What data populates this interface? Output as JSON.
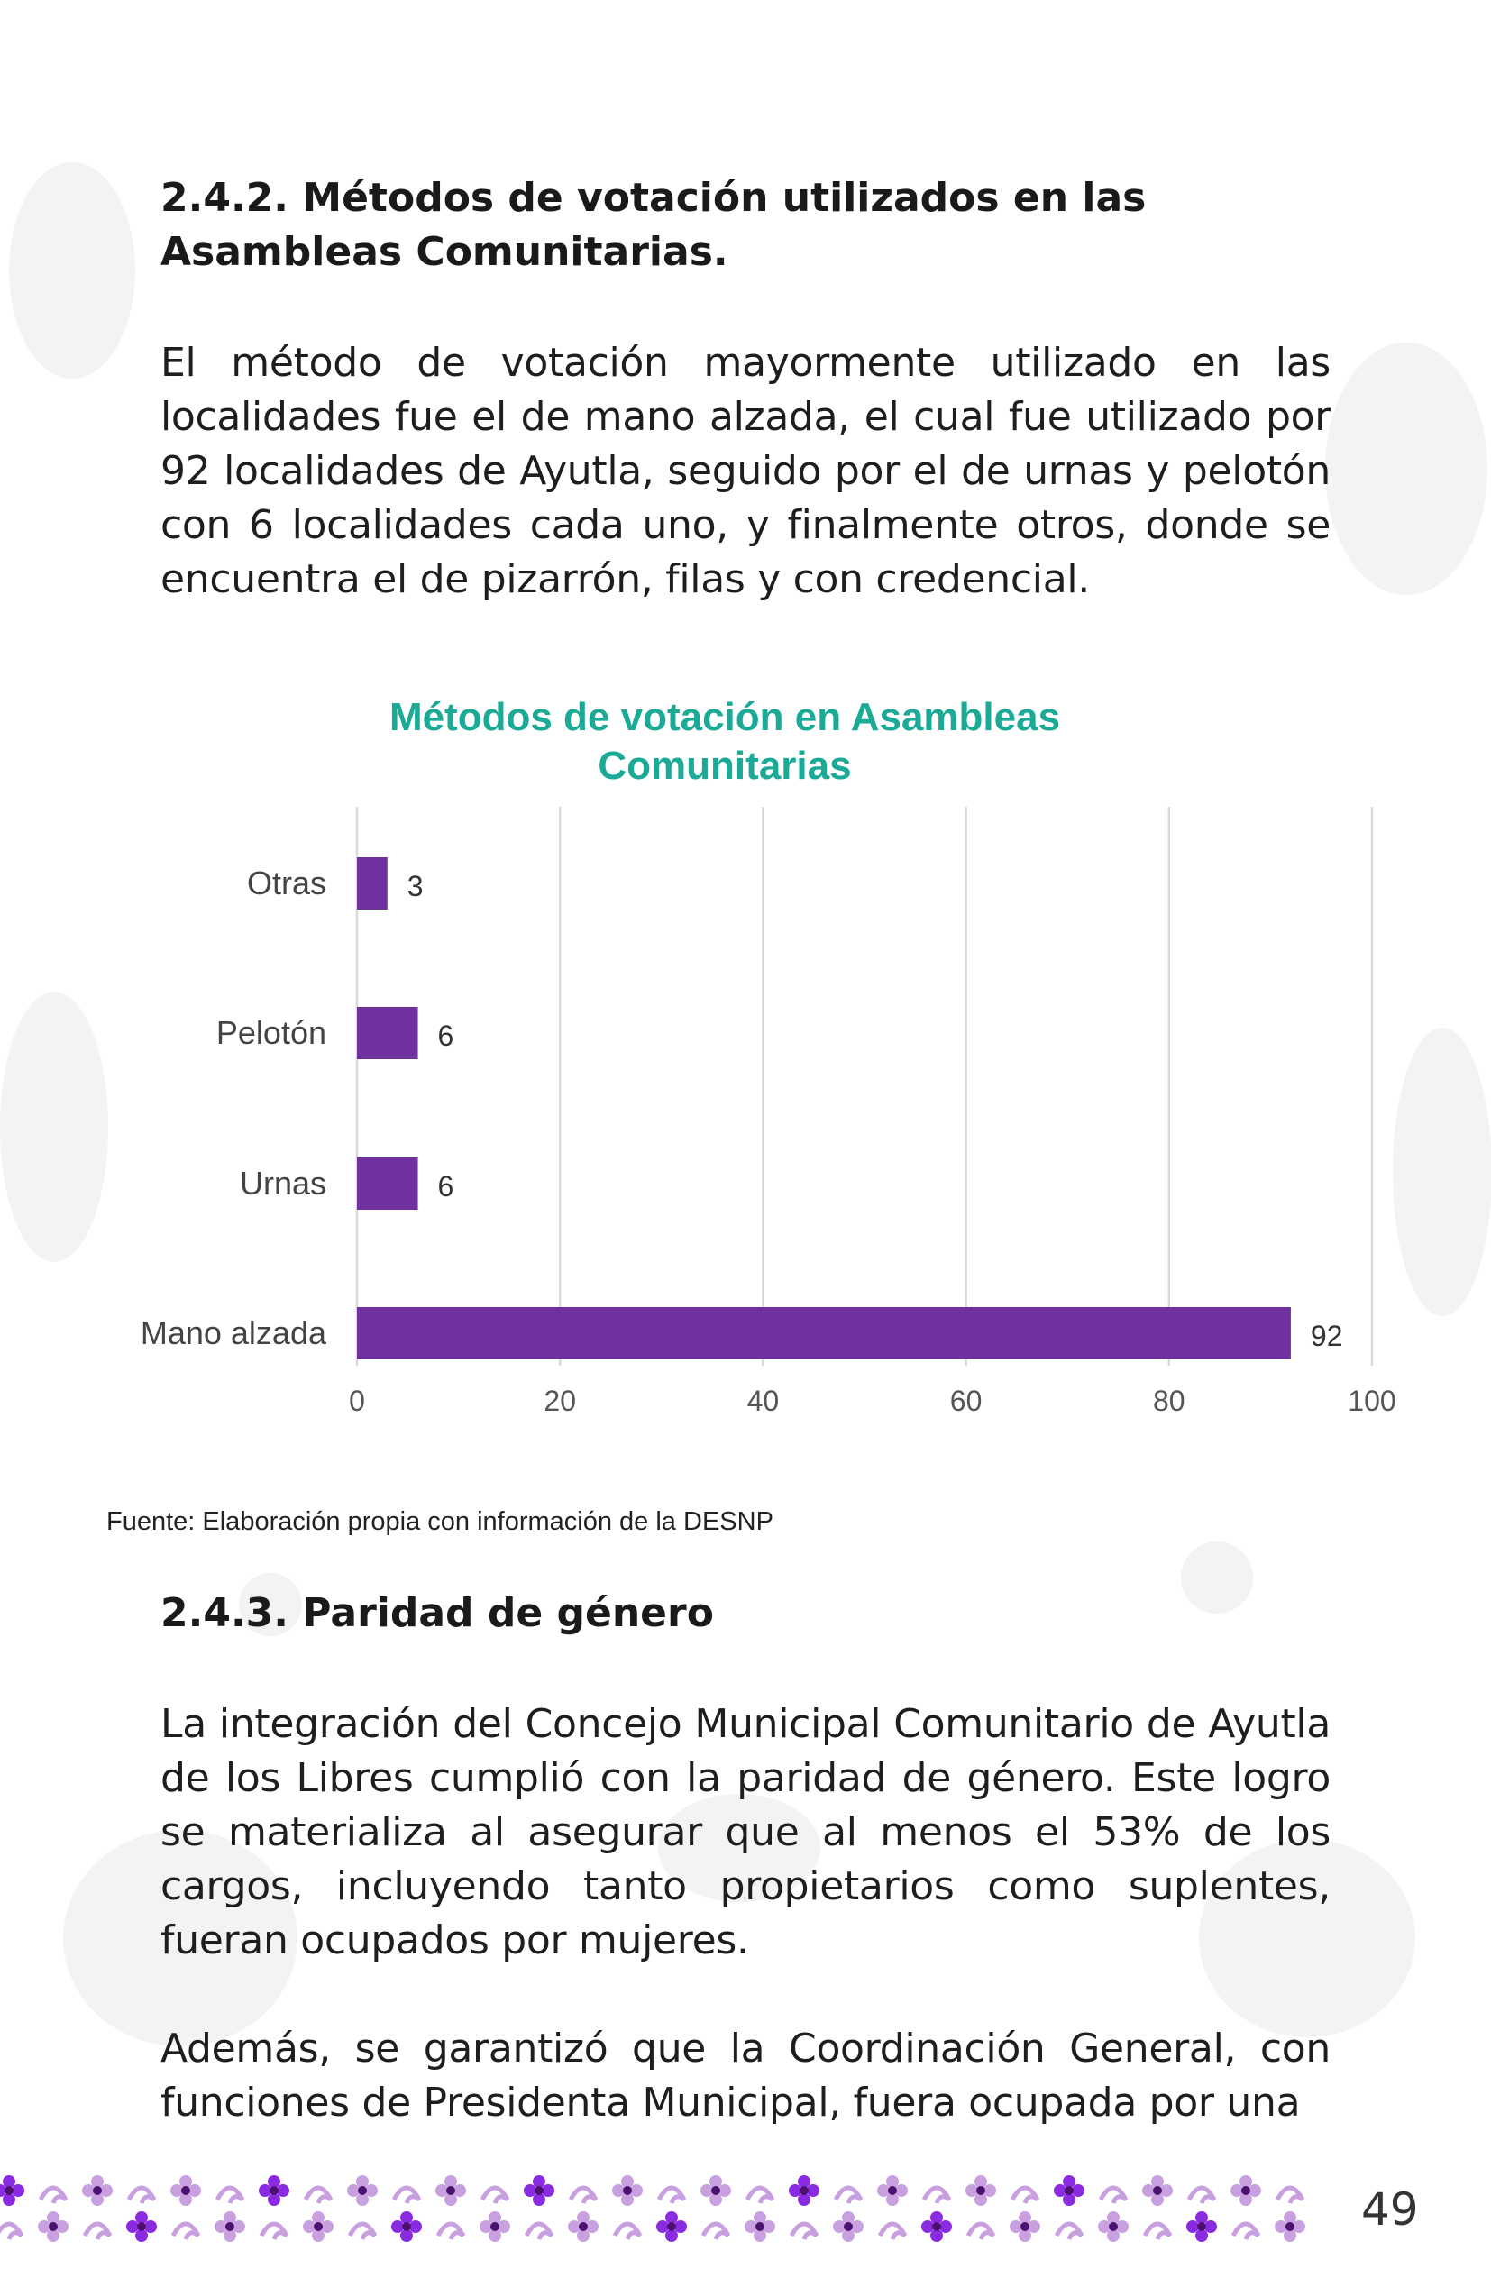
{
  "section_1": {
    "title": "2.4.2. Métodos de votación utilizados en las Asambleas Comunitarias.",
    "paragraph": "El método de votación mayormente utilizado en las localidades fue el de mano alzada, el cual fue utilizado por 92 localidades de Ayutla, seguido por el de urnas y pelotón con 6 localidades cada uno, y finalmente otros, donde se encuentra el de pizarrón, filas y con credencial."
  },
  "chart_data": {
    "type": "bar",
    "orientation": "horizontal",
    "title_line1": "Métodos de votación en Asambleas",
    "title_line2": "Comunitarias",
    "categories": [
      "Otras",
      "Pelotón",
      "Urnas",
      "Mano alzada"
    ],
    "values": [
      3,
      6,
      6,
      92
    ],
    "xlim": [
      0,
      100
    ],
    "xticks": [
      0,
      20,
      40,
      60,
      80,
      100
    ],
    "grid": true,
    "bar_color": "#7030a0",
    "title_color": "#1aaa96"
  },
  "source_note": "Fuente: Elaboración propia con información de la DESNP",
  "section_2": {
    "title": "2.4.3.  Paridad de género",
    "paragraph_1": "La integración del Concejo Municipal Comunitario de Ayutla de los Libres cumplió con la paridad de género. Este logro se materializa al asegurar que al menos el 53% de los cargos, incluyendo tanto propietarios como suplentes, fueran ocupados por mujeres.",
    "paragraph_2": "Además, se garantizó que la Coordinación General, con funciones de Presidenta Municipal, fuera ocupada por una"
  },
  "page_number": "49",
  "colors": {
    "accent_purple": "#7030a0",
    "footer_purple": "#8a2be2",
    "footer_light": "#c8a0e0"
  }
}
